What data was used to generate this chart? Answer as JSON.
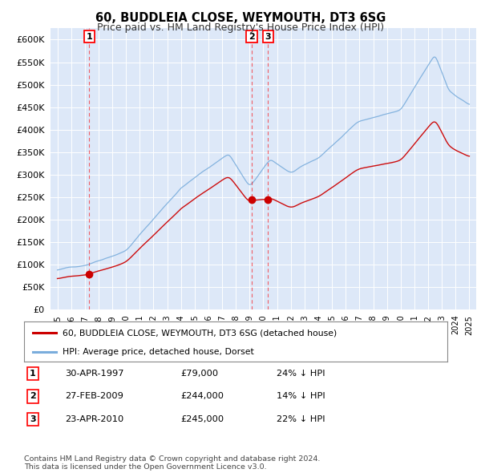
{
  "title": "60, BUDDLEIA CLOSE, WEYMOUTH, DT3 6SG",
  "subtitle": "Price paid vs. HM Land Registry's House Price Index (HPI)",
  "sale_color": "#cc0000",
  "hpi_color": "#7aaddc",
  "fig_bg_color": "#ffffff",
  "plot_bg_color": "#dde8f8",
  "sale_label": "60, BUDDLEIA CLOSE, WEYMOUTH, DT3 6SG (detached house)",
  "hpi_label": "HPI: Average price, detached house, Dorset",
  "transactions": [
    {
      "num": 1,
      "date": "30-APR-1997",
      "price": 79000,
      "pct": "24%",
      "dir": "↓",
      "year": 1997.33
    },
    {
      "num": 2,
      "date": "27-FEB-2009",
      "price": 244000,
      "pct": "14%",
      "dir": "↓",
      "year": 2009.16
    },
    {
      "num": 3,
      "date": "23-APR-2010",
      "price": 245000,
      "pct": "22%",
      "dir": "↓",
      "year": 2010.33
    }
  ],
  "footer": "Contains HM Land Registry data © Crown copyright and database right 2024.\nThis data is licensed under the Open Government Licence v3.0.",
  "ylim": [
    0,
    625000
  ],
  "yticks": [
    0,
    50000,
    100000,
    150000,
    200000,
    250000,
    300000,
    350000,
    400000,
    450000,
    500000,
    550000,
    600000
  ],
  "xlim": [
    1994.5,
    2025.5
  ]
}
